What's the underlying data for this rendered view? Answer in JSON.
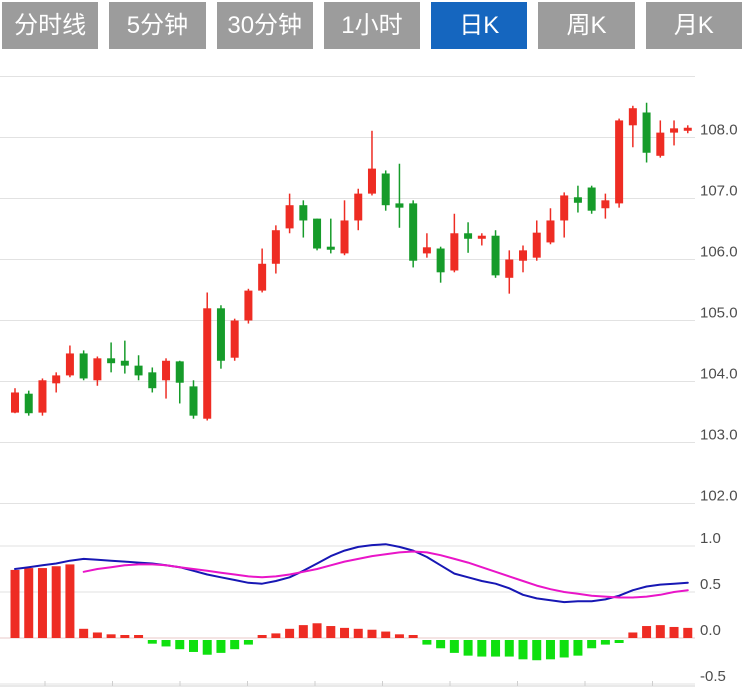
{
  "tabs": {
    "active_index": 4,
    "items": [
      {
        "label": "分时线"
      },
      {
        "label": "5分钟"
      },
      {
        "label": "30分钟"
      },
      {
        "label": "1小时"
      },
      {
        "label": "日K"
      },
      {
        "label": "周K"
      },
      {
        "label": "月K"
      }
    ]
  },
  "chart_data": {
    "type": "candlestick",
    "title": "",
    "legend_position": "none",
    "grid": true,
    "price_axis": {
      "side": "right",
      "ylim": [
        101.7,
        109.2
      ],
      "ticks": [
        {
          "v": 109.0,
          "label": ""
        },
        {
          "v": 108.0,
          "label": "108.0"
        },
        {
          "v": 107.0,
          "label": "107.0"
        },
        {
          "v": 106.0,
          "label": "106.0"
        },
        {
          "v": 105.0,
          "label": "105.0"
        },
        {
          "v": 104.0,
          "label": "104.0"
        },
        {
          "v": 103.0,
          "label": "103.0"
        },
        {
          "v": 102.0,
          "label": "102.0"
        }
      ]
    },
    "candles_ohlc": [
      [
        103.49,
        103.89,
        103.48,
        103.82
      ],
      [
        103.8,
        103.85,
        103.44,
        103.48
      ],
      [
        103.49,
        104.05,
        103.44,
        104.02
      ],
      [
        103.97,
        104.15,
        103.82,
        104.1
      ],
      [
        104.1,
        104.59,
        104.07,
        104.46
      ],
      [
        104.46,
        104.51,
        104.02,
        104.05
      ],
      [
        104.02,
        104.41,
        103.93,
        104.38
      ],
      [
        104.38,
        104.64,
        104.15,
        104.3
      ],
      [
        104.34,
        104.67,
        104.13,
        104.26
      ],
      [
        104.26,
        104.43,
        104.02,
        104.1
      ],
      [
        104.15,
        104.23,
        103.82,
        103.89
      ],
      [
        104.02,
        104.38,
        103.72,
        104.34
      ],
      [
        104.33,
        104.34,
        103.64,
        103.98
      ],
      [
        103.92,
        104.02,
        103.39,
        103.44
      ],
      [
        103.39,
        105.46,
        103.36,
        105.2
      ],
      [
        105.2,
        105.25,
        104.21,
        104.34
      ],
      [
        104.39,
        105.03,
        104.34,
        105.0
      ],
      [
        105.0,
        105.52,
        104.95,
        105.49
      ],
      [
        105.49,
        106.18,
        105.46,
        105.93
      ],
      [
        105.93,
        106.56,
        105.77,
        106.48
      ],
      [
        106.51,
        107.08,
        106.43,
        106.89
      ],
      [
        106.89,
        106.97,
        106.36,
        106.64
      ],
      [
        106.67,
        106.67,
        106.15,
        106.18
      ],
      [
        106.21,
        106.67,
        106.1,
        106.16
      ],
      [
        106.1,
        106.97,
        106.07,
        106.64
      ],
      [
        106.64,
        107.16,
        106.48,
        107.08
      ],
      [
        107.08,
        108.11,
        107.05,
        107.49
      ],
      [
        107.41,
        107.46,
        106.8,
        106.89
      ],
      [
        106.92,
        107.57,
        106.52,
        106.85
      ],
      [
        106.92,
        106.97,
        105.87,
        105.98
      ],
      [
        106.1,
        106.43,
        106.03,
        106.2
      ],
      [
        106.18,
        106.21,
        105.62,
        105.79
      ],
      [
        105.82,
        106.75,
        105.79,
        106.43
      ],
      [
        106.43,
        106.61,
        106.11,
        106.34
      ],
      [
        106.34,
        106.43,
        106.23,
        106.39
      ],
      [
        106.39,
        106.48,
        105.7,
        105.74
      ],
      [
        105.7,
        106.15,
        105.44,
        106.0
      ],
      [
        105.98,
        106.23,
        105.79,
        106.15
      ],
      [
        106.03,
        106.64,
        105.98,
        106.44
      ],
      [
        106.28,
        106.84,
        106.25,
        106.64
      ],
      [
        106.64,
        107.1,
        106.36,
        107.05
      ],
      [
        107.02,
        107.21,
        106.77,
        106.93
      ],
      [
        107.18,
        107.21,
        106.75,
        106.8
      ],
      [
        106.84,
        107.08,
        106.67,
        106.97
      ],
      [
        106.92,
        108.31,
        106.85,
        108.28
      ],
      [
        108.2,
        108.52,
        107.84,
        108.48
      ],
      [
        108.41,
        108.57,
        107.59,
        107.75
      ],
      [
        107.7,
        108.28,
        107.67,
        108.08
      ],
      [
        108.08,
        108.28,
        107.87,
        108.15
      ],
      [
        108.11,
        108.2,
        108.07,
        108.16
      ]
    ],
    "macd_axis": {
      "side": "right",
      "ylim": [
        -0.55,
        1.05
      ],
      "ticks": [
        {
          "v": 1.0,
          "label": "1.0"
        },
        {
          "v": 0.5,
          "label": "0.5"
        },
        {
          "v": 0.0,
          "label": "0.0"
        },
        {
          "v": -0.5,
          "label": "-0.5"
        }
      ]
    },
    "macd": {
      "histogram": [
        0.74,
        0.76,
        0.76,
        0.78,
        0.8,
        0.1,
        0.06,
        0.04,
        0.03,
        0.02,
        -0.04,
        -0.07,
        -0.1,
        -0.13,
        -0.16,
        -0.14,
        -0.1,
        -0.05,
        0.02,
        0.05,
        0.1,
        0.14,
        0.16,
        0.13,
        0.11,
        0.1,
        0.09,
        0.07,
        0.04,
        0.02,
        -0.05,
        -0.09,
        -0.14,
        -0.17,
        -0.18,
        -0.18,
        -0.18,
        -0.21,
        -0.22,
        -0.21,
        -0.19,
        -0.17,
        -0.09,
        -0.05,
        -0.03,
        0.06,
        0.13,
        0.14,
        0.12,
        0.11
      ],
      "dif": [
        0.75,
        0.77,
        0.79,
        0.81,
        0.84,
        0.86,
        0.85,
        0.84,
        0.83,
        0.82,
        0.81,
        0.79,
        0.77,
        0.73,
        0.69,
        0.66,
        0.63,
        0.6,
        0.59,
        0.62,
        0.66,
        0.73,
        0.81,
        0.89,
        0.95,
        0.99,
        1.01,
        1.02,
        0.99,
        0.95,
        0.88,
        0.79,
        0.7,
        0.66,
        0.62,
        0.59,
        0.54,
        0.47,
        0.43,
        0.41,
        0.39,
        0.4,
        0.4,
        0.42,
        0.46,
        0.52,
        0.56,
        0.58,
        0.59,
        0.6
      ],
      "dea": [
        null,
        null,
        null,
        null,
        null,
        0.72,
        0.75,
        0.77,
        0.79,
        0.8,
        0.8,
        0.79,
        0.77,
        0.75,
        0.73,
        0.71,
        0.69,
        0.67,
        0.66,
        0.67,
        0.69,
        0.72,
        0.75,
        0.79,
        0.83,
        0.86,
        0.89,
        0.91,
        0.93,
        0.94,
        0.93,
        0.9,
        0.86,
        0.82,
        0.77,
        0.72,
        0.67,
        0.62,
        0.57,
        0.53,
        0.5,
        0.48,
        0.46,
        0.45,
        0.44,
        0.44,
        0.45,
        0.47,
        0.5,
        0.52
      ]
    },
    "colors": {
      "up": "#ee2c23",
      "down": "#169b2a",
      "hist_up": "#ee2c23",
      "hist_down": "#0fe00f",
      "dif_line": "#1717b4",
      "dea_line": "#e915c8",
      "grid": "#e2e2e2",
      "zero_line": "#eac9c9",
      "axis_text": "#4d4d4d",
      "tab_bg": "#9c9c9c",
      "tab_active_bg": "#1566bf"
    }
  }
}
